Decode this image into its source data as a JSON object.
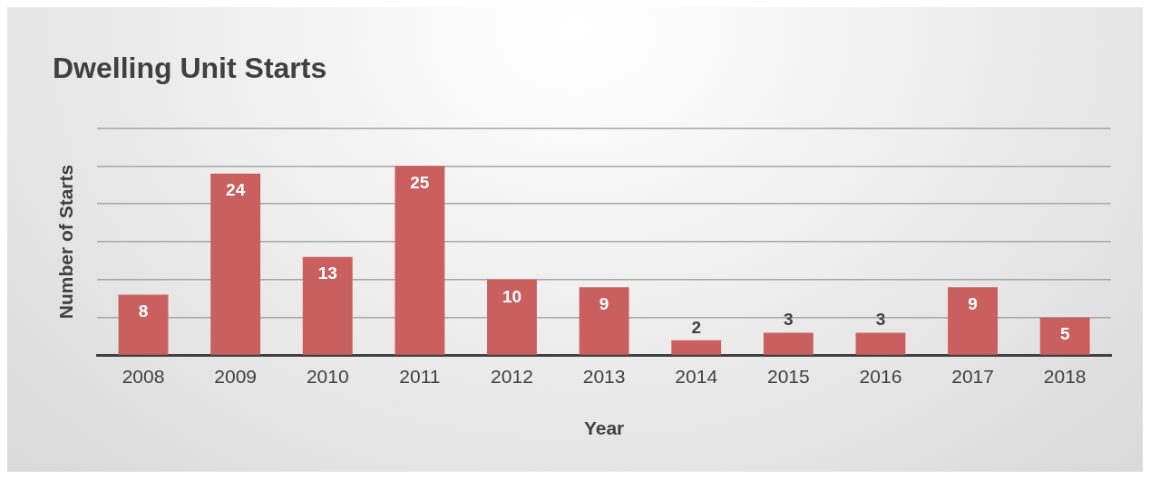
{
  "chart_data": {
    "type": "bar",
    "title": "Dwelling Unit Starts",
    "xlabel": "Year",
    "ylabel": "Number of Starts",
    "categories": [
      "2008",
      "2009",
      "2010",
      "2011",
      "2012",
      "2013",
      "2014",
      "2015",
      "2016",
      "2017",
      "2018"
    ],
    "values": [
      8,
      24,
      13,
      25,
      10,
      9,
      2,
      3,
      3,
      9,
      5
    ],
    "color": "#c9605f",
    "ylim": [
      0,
      30
    ],
    "yticks": [
      {
        "value": 0,
        "label": null
      },
      {
        "value": 5,
        "label": null
      },
      {
        "value": 10,
        "label": null
      },
      {
        "value": 15,
        "label": null
      },
      {
        "value": 20,
        "label": null
      },
      {
        "value": 25,
        "label": null
      },
      {
        "value": 30,
        "label": null
      }
    ],
    "tick_labels": "x",
    "grid": "y",
    "legend": false,
    "data_labels": true
  }
}
